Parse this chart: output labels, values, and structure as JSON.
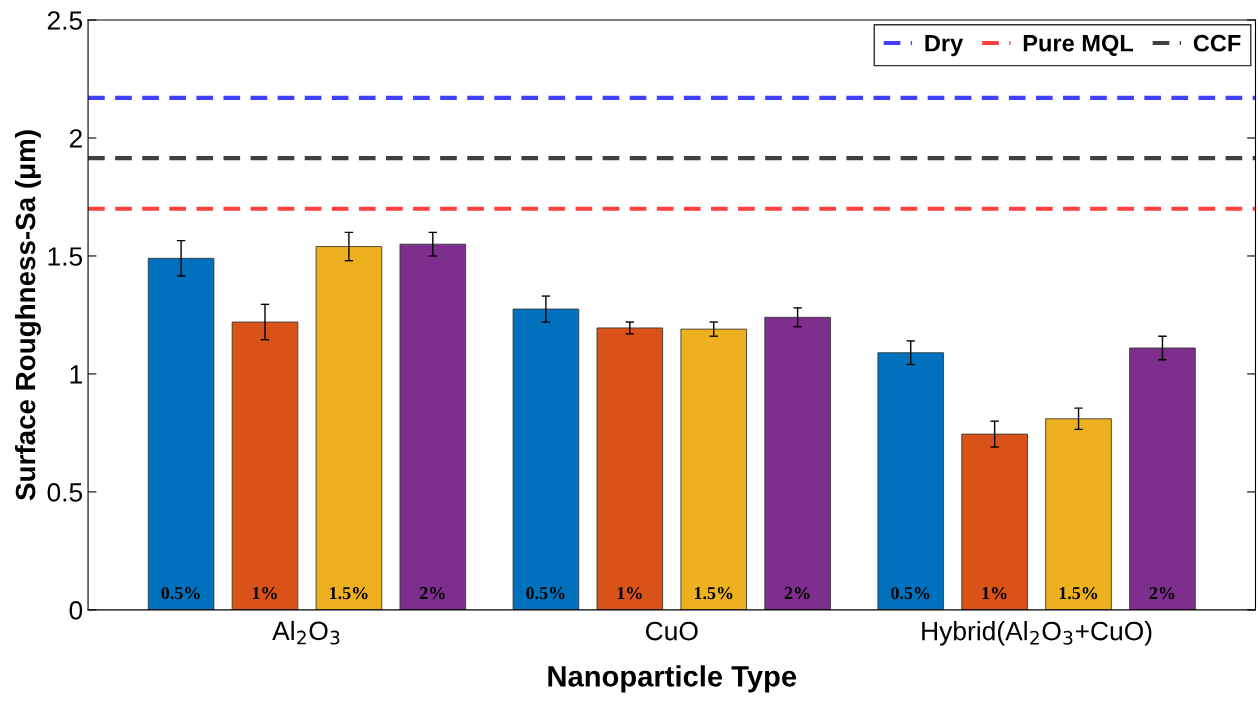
{
  "chart_data": {
    "type": "bar",
    "xlabel": "Nanoparticle Type",
    "ylabel": "Surface Roughness-Sa (μm)",
    "categories": [
      "Al$_{2}$O$_{3}$",
      "CuO",
      "Hybrid(Al$_{2}$O$_{3}$+CuO)"
    ],
    "series": [
      {
        "name": "0.5%",
        "color": "#0072bd",
        "values": [
          1.49,
          1.275,
          1.09
        ],
        "errors": [
          0.075,
          0.055,
          0.05
        ]
      },
      {
        "name": "1%",
        "color": "#d95319",
        "values": [
          1.22,
          1.195,
          0.745
        ],
        "errors": [
          0.075,
          0.025,
          0.055
        ]
      },
      {
        "name": "1.5%",
        "color": "#edb120",
        "values": [
          1.54,
          1.19,
          0.81
        ],
        "errors": [
          0.06,
          0.03,
          0.045
        ]
      },
      {
        "name": "2%",
        "color": "#7e2f8e",
        "values": [
          1.55,
          1.24,
          1.11
        ],
        "errors": [
          0.05,
          0.04,
          0.05
        ]
      }
    ],
    "ylim": [
      0,
      2.5
    ],
    "yticks": [
      0,
      0.5,
      1,
      1.5,
      2,
      2.5
    ],
    "ref_lines": [
      {
        "axis": "y",
        "value": 2.17,
        "label": "Dry",
        "color": "#4040ff",
        "line_style": "dashed"
      },
      {
        "axis": "y",
        "value": 1.7,
        "label": "Pure MQL",
        "color": "#ff4040",
        "line_style": "dashed"
      },
      {
        "axis": "y",
        "value": 1.915,
        "label": "CCF",
        "color": "#404040",
        "line_style": "dashed"
      }
    ],
    "legend": "top right",
    "grid": false
  }
}
